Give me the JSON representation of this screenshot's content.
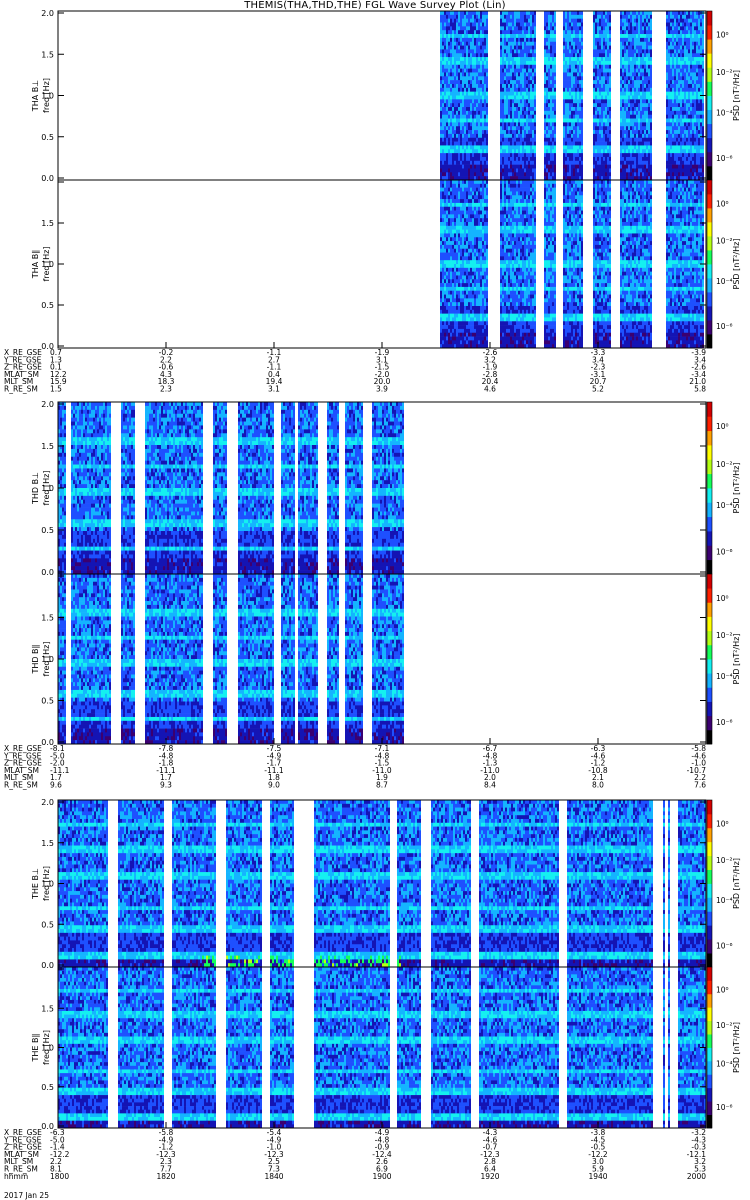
{
  "title": "THEMIS(THA,THD,THE) FGL Wave Survey Plot (Lin)",
  "chart_data": {
    "type": "heatmap",
    "y_axis": {
      "label": "freq [Hz]",
      "range": [
        0.0,
        2.0
      ],
      "ticks": [
        "0.0",
        "0.5",
        "1.0",
        "1.5",
        "2.0"
      ]
    },
    "colorbar": {
      "label": "PSD [nT²/Hz]",
      "scale": "log",
      "ticks": [
        "10⁰",
        "10⁻²",
        "10⁻⁴",
        "10⁻⁶"
      ],
      "palette": [
        "#000000",
        "#3b0070",
        "#1414b4",
        "#1e50ff",
        "#14b4ff",
        "#14f0f0",
        "#14ff5a",
        "#b4ff14",
        "#ffff00",
        "#ffa000",
        "#ff2000",
        "#d20000"
      ]
    },
    "panels": [
      {
        "id": "tha-bl",
        "label": "THA B⊥",
        "probe": "THA",
        "component": "perp"
      },
      {
        "id": "tha-bpar",
        "label": "THA B∥",
        "probe": "THA",
        "component": "par"
      },
      {
        "id": "thd-bl",
        "label": "THD B⊥",
        "probe": "THD",
        "component": "perp"
      },
      {
        "id": "thd-bpar",
        "label": "THD B∥",
        "probe": "THD",
        "component": "par"
      },
      {
        "id": "the-bl",
        "label": "THE B⊥",
        "probe": "THE",
        "component": "perp"
      },
      {
        "id": "the-bpar",
        "label": "THE B∥",
        "probe": "THE",
        "component": "par"
      }
    ],
    "ephemeris": [
      {
        "probe": "THA",
        "rows": [
          {
            "name": "X_RE_GSE",
            "values": [
              "0.7",
              "-0.2",
              "-1.1",
              "-1.9",
              "-2.6",
              "-3.3",
              "-3.9"
            ]
          },
          {
            "name": "Y_RE_GSE",
            "values": [
              "1.3",
              "2.2",
              "2.7",
              "3.1",
              "3.2",
              "3.4",
              "3.4"
            ]
          },
          {
            "name": "Z_RE_GSE",
            "values": [
              "0.1",
              "-0.6",
              "-1.1",
              "-1.5",
              "-1.9",
              "-2.3",
              "-2.6"
            ]
          },
          {
            "name": "MLAT_SM",
            "values": [
              "12.2",
              "4.3",
              "0.4",
              "-2.0",
              "-2.8",
              "-3.1",
              "-3.4"
            ]
          },
          {
            "name": "MLT_SM",
            "values": [
              "15.9",
              "18.3",
              "19.4",
              "20.0",
              "20.4",
              "20.7",
              "21.0"
            ]
          },
          {
            "name": "R_RE_SM",
            "values": [
              "1.5",
              "2.3",
              "3.1",
              "3.9",
              "4.6",
              "5.2",
              "5.8"
            ]
          }
        ]
      },
      {
        "probe": "THD",
        "rows": [
          {
            "name": "X_RE_GSE",
            "values": [
              "-8.1",
              "-7.8",
              "-7.5",
              "-7.1",
              "-6.7",
              "-6.3",
              "-5.8"
            ]
          },
          {
            "name": "Y_RE_GSE",
            "values": [
              "-5.0",
              "-4.8",
              "-4.9",
              "-4.8",
              "-4.8",
              "-4.6",
              "-4.6"
            ]
          },
          {
            "name": "Z_RE_GSE",
            "values": [
              "-2.0",
              "-1.8",
              "-1.7",
              "-1.5",
              "-1.3",
              "-1.2",
              "-1.0"
            ]
          },
          {
            "name": "MLAT_SM",
            "values": [
              "-11.1",
              "-11.1",
              "-11.1",
              "-11.0",
              "-11.0",
              "-10.8",
              "-10.7"
            ]
          },
          {
            "name": "MLT_SM",
            "values": [
              "1.7",
              "1.7",
              "1.8",
              "1.9",
              "2.0",
              "2.1",
              "2.2"
            ]
          },
          {
            "name": "R_RE_SM",
            "values": [
              "9.6",
              "9.3",
              "9.0",
              "8.7",
              "8.4",
              "8.0",
              "7.6"
            ]
          }
        ]
      },
      {
        "probe": "THE",
        "rows": [
          {
            "name": "X_RE_GSE",
            "values": [
              "-6.3",
              "-5.8",
              "-5.4",
              "-4.9",
              "-4.3",
              "-3.8",
              "-3.2"
            ]
          },
          {
            "name": "Y_RE_GSE",
            "values": [
              "-5.0",
              "-4.9",
              "-4.9",
              "-4.8",
              "-4.6",
              "-4.5",
              "-4.3"
            ]
          },
          {
            "name": "Z_RE_GSE",
            "values": [
              "-1.4",
              "-1.2",
              "-1.0",
              "-0.9",
              "-0.7",
              "-0.5",
              "-0.3"
            ]
          },
          {
            "name": "MLAT_SM",
            "values": [
              "-12.2",
              "-12.3",
              "-12.3",
              "-12.4",
              "-12.3",
              "-12.2",
              "-12.1"
            ]
          },
          {
            "name": "MLT_SM",
            "values": [
              "2.2",
              "2.3",
              "2.5",
              "2.6",
              "2.8",
              "3.0",
              "3.2"
            ]
          },
          {
            "name": "R_RE_SM",
            "values": [
              "8.1",
              "7.7",
              "7.3",
              "6.9",
              "6.4",
              "5.9",
              "5.3"
            ]
          },
          {
            "name": "hhmm",
            "values": [
              "1800",
              "1820",
              "1840",
              "1900",
              "1920",
              "1940",
              "2000"
            ]
          }
        ]
      }
    ],
    "date_label": "2017 Jan 25",
    "x_range_hhmm": [
      "1800",
      "2000"
    ],
    "data_coverage": {
      "THA": [
        [
          37.4,
          37.5
        ],
        [
          37.7,
          37.8
        ],
        [
          38.2,
          38.3
        ],
        [
          38.6,
          38.9
        ]
      ],
      "THD": [
        [
          0.0,
          0.01
        ],
        [
          0.04,
          0.4
        ],
        [
          0.42,
          0.46
        ],
        [
          0.49,
          0.53
        ]
      ],
      "THE": [
        [
          0.0,
          0.01
        ],
        [
          0.05,
          0.96
        ],
        [
          0.98,
          1.0
        ]
      ]
    }
  }
}
